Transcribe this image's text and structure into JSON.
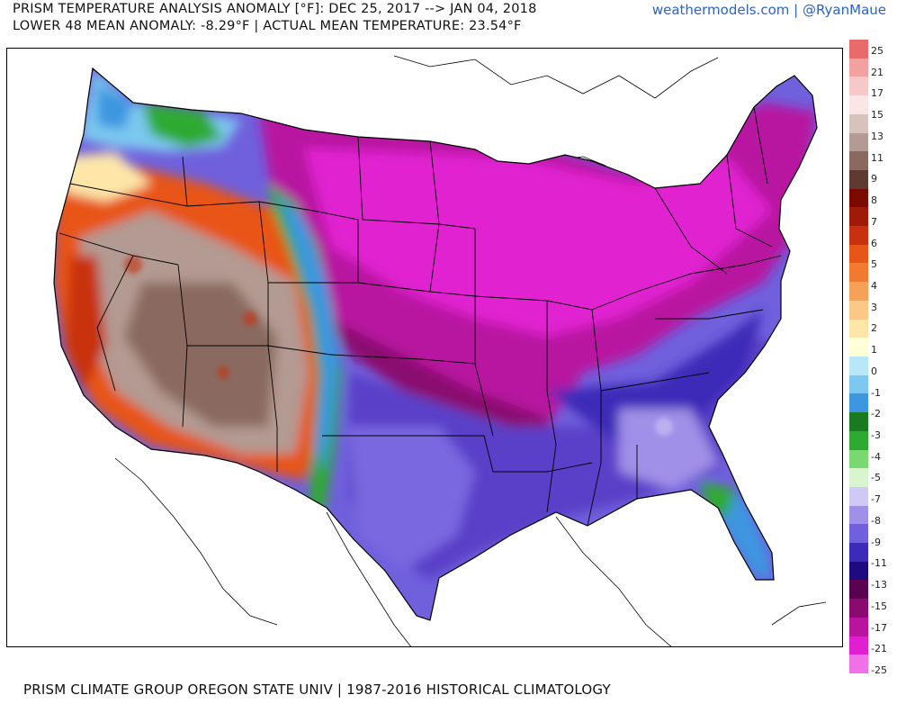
{
  "header": {
    "title_line1": "PRISM TEMPERATURE ANALYSIS ANOMALY [°F]: DEC 25, 2017 --> JAN 04, 2018",
    "title_line2": "LOWER 48 MEAN ANOMALY: -8.29°F | ACTUAL MEAN TEMPERATURE: 23.54°F",
    "credit": "weathermodels.com | @RyanMaue"
  },
  "footer": {
    "text": "PRISM CLIMATE GROUP OREGON STATE UNIV | 1987-2016 HISTORICAL CLIMATOLOGY"
  },
  "colorbar": {
    "labels": [
      "25",
      "21",
      "17",
      "15",
      "13",
      "11",
      "9",
      "8",
      "7",
      "6",
      "5",
      "4",
      "3",
      "2",
      "1",
      "0",
      "-1",
      "-2",
      "-3",
      "-4",
      "-5",
      "-7",
      "-8",
      "-9",
      "-11",
      "-13",
      "-15",
      "-17",
      "-21",
      "-25"
    ],
    "colors": [
      "#e86a6a",
      "#f2a0a0",
      "#f7c8c8",
      "#fbe6e6",
      "#d8c2bc",
      "#b39a92",
      "#8a6a60",
      "#5e3a30",
      "#7a0a00",
      "#a01a08",
      "#c83010",
      "#e85518",
      "#f07a30",
      "#f5a258",
      "#fcc888",
      "#fde6a8",
      "#ffffd8",
      "#b8e8f8",
      "#7cc8f0",
      "#3c96e0",
      "#1a7a20",
      "#2eaa30",
      "#7ad870",
      "#d8f5d0",
      "#d0c8f5",
      "#a090e8",
      "#7060dc",
      "#3c2ab8",
      "#200a80",
      "#5a0050",
      "#8a0a70",
      "#b814a0",
      "#e020d0",
      "#f070e8"
    ]
  },
  "map": {
    "region": "CONUS Lower 48",
    "regions": [
      {
        "name": "Pacific Northwest coast",
        "anomaly_class": "cold-blue"
      },
      {
        "name": "Great Basin / Southwest",
        "anomaly_class": "warm-brown"
      },
      {
        "name": "Rockies front",
        "anomaly_class": "green-band"
      },
      {
        "name": "Northern Plains / Midwest",
        "anomaly_class": "very-cold-magenta"
      },
      {
        "name": "Southern Plains / Southeast",
        "anomaly_class": "cold-purple"
      },
      {
        "name": "Florida peninsula",
        "anomaly_class": "blue-green"
      }
    ]
  }
}
